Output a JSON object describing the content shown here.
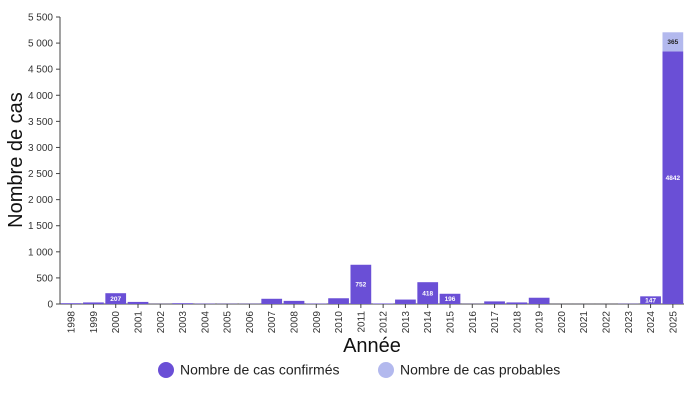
{
  "chart_data": {
    "type": "bar",
    "stacked": true,
    "xlabel": "Année",
    "ylabel": "Nombre de cas",
    "ylim": [
      0,
      5500
    ],
    "y_ticks": [
      0,
      500,
      1000,
      1500,
      2000,
      2500,
      3000,
      3500,
      4000,
      4500,
      5000,
      5500
    ],
    "y_tick_labels": [
      "0",
      "500",
      "1 000",
      "1 500",
      "2 000",
      "2 500",
      "3 000",
      "3 500",
      "4 000",
      "4 500",
      "5 000",
      "5 500"
    ],
    "categories": [
      "1998",
      "1999",
      "2000",
      "2001",
      "2002",
      "2003",
      "2004",
      "2005",
      "2006",
      "2007",
      "2008",
      "2009",
      "2010",
      "2011",
      "2012",
      "2013",
      "2014",
      "2015",
      "2016",
      "2017",
      "2018",
      "2019",
      "2020",
      "2021",
      "2022",
      "2023",
      "2024",
      "2025"
    ],
    "series": [
      {
        "name": "Nombre de cas confirmés",
        "color": "#6a4fd6",
        "values": [
          15,
          30,
          207,
          40,
          3,
          15,
          7,
          5,
          5,
          100,
          60,
          8,
          110,
          752,
          10,
          85,
          418,
          196,
          3,
          50,
          30,
          120,
          1,
          1,
          1,
          5,
          147,
          4842
        ],
        "data_labels": [
          null,
          null,
          "207",
          null,
          null,
          null,
          null,
          null,
          null,
          null,
          null,
          null,
          null,
          "752",
          null,
          null,
          "418",
          "196",
          null,
          null,
          null,
          null,
          null,
          null,
          null,
          null,
          "147",
          "4842"
        ]
      },
      {
        "name": "Nombre de cas probables",
        "color": "#b3b9ee",
        "values": [
          0,
          0,
          0,
          0,
          0,
          0,
          0,
          0,
          0,
          0,
          0,
          0,
          0,
          0,
          0,
          0,
          0,
          0,
          0,
          0,
          0,
          0,
          0,
          0,
          0,
          0,
          0,
          365
        ],
        "data_labels": [
          null,
          null,
          null,
          null,
          null,
          null,
          null,
          null,
          null,
          null,
          null,
          null,
          null,
          null,
          null,
          null,
          null,
          null,
          null,
          null,
          null,
          null,
          null,
          null,
          null,
          null,
          null,
          "365"
        ]
      }
    ],
    "grid": false,
    "legend_position": "bottom"
  }
}
